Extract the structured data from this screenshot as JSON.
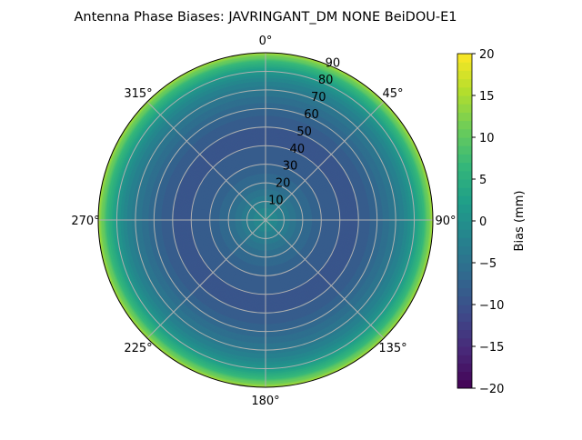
{
  "chart_data": {
    "type": "heatmap",
    "projection": "polar",
    "title": "Antenna Phase Biases: JAVRINGANT_DM   NONE BeiDOU-E1",
    "theta_direction": "clockwise",
    "theta_zero": "north",
    "theta_tick_labels": [
      "0°",
      "45°",
      "90°",
      "135°",
      "180°",
      "225°",
      "270°",
      "315°"
    ],
    "theta_ticks": [
      0,
      45,
      90,
      135,
      180,
      225,
      270,
      315
    ],
    "r_ticks": [
      10,
      20,
      30,
      40,
      50,
      60,
      70,
      80,
      90
    ],
    "r_tick_labels": [
      "10",
      "20",
      "30",
      "40",
      "50",
      "60",
      "70",
      "80",
      "90"
    ],
    "rlim": [
      0,
      90
    ],
    "grid": true,
    "colormap": "viridis",
    "colorbar": {
      "label": "Bias (mm)",
      "range": [
        -20,
        20
      ],
      "ticks": [
        20,
        15,
        10,
        5,
        0,
        -5,
        -10,
        -15,
        -20
      ],
      "tick_labels": [
        "20",
        "15",
        "10",
        "5",
        "0",
        "−5",
        "−10",
        "−15",
        "−20"
      ]
    },
    "profile_note_free": true,
    "radial_profile": {
      "r": [
        0,
        5,
        10,
        15,
        20,
        25,
        30,
        35,
        40,
        45,
        50,
        55,
        60,
        65,
        70,
        75,
        80,
        85,
        90
      ],
      "bias": [
        0,
        -1.5,
        -3,
        -4.5,
        -6,
        -7,
        -8,
        -8.7,
        -9,
        -9.2,
        -9,
        -8.3,
        -7,
        -5.5,
        -4,
        -2,
        1,
        6,
        14
      ]
    }
  }
}
